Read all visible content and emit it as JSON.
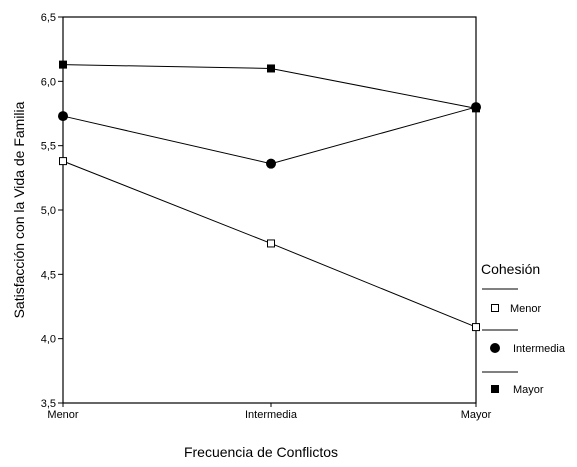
{
  "chart_data": {
    "type": "line",
    "xlabel": "Frecuencia de Conflictos",
    "ylabel": "Satisfacción con la Vida de Familia",
    "categories": [
      "Menor",
      "Intermedia",
      "Mayor"
    ],
    "ylim": [
      3.5,
      6.5
    ],
    "yticks": [
      "3,5",
      "4,0",
      "4,5",
      "5,0",
      "5,5",
      "6,0",
      "6,5"
    ],
    "grid": false,
    "legend": {
      "title": "Cohesión",
      "position": "right"
    },
    "series": [
      {
        "name": "Menor",
        "marker": "square-open",
        "values": [
          5.38,
          4.74,
          4.09
        ]
      },
      {
        "name": "Intermedia",
        "marker": "circle-filled",
        "values": [
          5.73,
          5.36,
          5.8
        ]
      },
      {
        "name": "Mayor",
        "marker": "square-filled",
        "values": [
          6.13,
          6.1,
          5.79
        ]
      }
    ]
  }
}
